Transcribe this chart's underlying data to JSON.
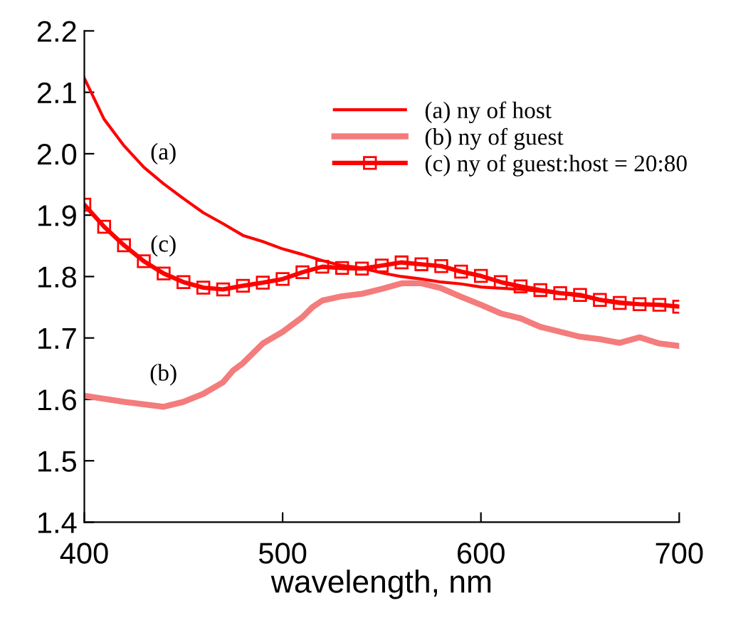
{
  "chart_data": {
    "type": "line",
    "xlabel": "wavelength, nm",
    "xlim": [
      400,
      700
    ],
    "xticks": [
      400,
      500,
      600,
      700
    ],
    "ylim": [
      1.4,
      2.2
    ],
    "yticks": [
      {
        "value": 1.4,
        "label": "1.4"
      },
      {
        "value": 1.5,
        "label": "1.5"
      },
      {
        "value": 1.6,
        "label": "1.6"
      },
      {
        "value": 1.7,
        "label": "1.7"
      },
      {
        "value": 1.8,
        "label": "1.8"
      },
      {
        "value": 1.9,
        "label": "1.9"
      },
      {
        "value": 2.0,
        "label": "2.0"
      },
      {
        "value": 2.1,
        "label": "2.1"
      },
      {
        "value": 2.2,
        "label": "2.2"
      }
    ],
    "grid": false,
    "legend": "top right",
    "annotations": [
      "(a)",
      "(c)",
      "(b)"
    ],
    "series": [
      {
        "name": "(a) ny of host",
        "color": "#ff0000",
        "marker": "none",
        "x": [
          400,
          410,
          420,
          430,
          440,
          450,
          460,
          470,
          480,
          490,
          500,
          510,
          520,
          530,
          540,
          550,
          560,
          570,
          580,
          590,
          600,
          620,
          640,
          660,
          680,
          700
        ],
        "values": [
          2.123,
          2.056,
          2.013,
          1.978,
          1.951,
          1.927,
          1.904,
          1.886,
          1.867,
          1.857,
          1.845,
          1.836,
          1.826,
          1.818,
          1.814,
          1.806,
          1.8,
          1.796,
          1.791,
          1.788,
          1.783,
          1.779,
          1.773,
          1.763,
          1.755,
          1.752
        ]
      },
      {
        "name": "(b) ny of guest",
        "color": "#f47c7c",
        "marker": "none",
        "x": [
          400,
          420,
          440,
          450,
          460,
          470,
          475,
          480,
          490,
          500,
          510,
          515,
          520,
          530,
          540,
          550,
          560,
          570,
          580,
          590,
          600,
          610,
          620,
          630,
          640,
          650,
          660,
          670,
          680,
          690,
          700
        ],
        "values": [
          1.606,
          1.596,
          1.588,
          1.596,
          1.609,
          1.628,
          1.647,
          1.659,
          1.691,
          1.71,
          1.734,
          1.75,
          1.761,
          1.768,
          1.772,
          1.78,
          1.789,
          1.789,
          1.781,
          1.767,
          1.754,
          1.74,
          1.732,
          1.718,
          1.71,
          1.702,
          1.698,
          1.692,
          1.701,
          1.691,
          1.687
        ]
      },
      {
        "name": "(c) ny of guest:host = 20:80",
        "color": "#ff0000",
        "marker": "square",
        "x": [
          400,
          410,
          420,
          430,
          440,
          450,
          460,
          470,
          480,
          490,
          500,
          510,
          520,
          530,
          540,
          550,
          560,
          570,
          580,
          590,
          600,
          610,
          620,
          630,
          640,
          650,
          660,
          670,
          680,
          690,
          700
        ],
        "values": [
          1.917,
          1.881,
          1.851,
          1.825,
          1.805,
          1.791,
          1.782,
          1.779,
          1.785,
          1.79,
          1.796,
          1.807,
          1.816,
          1.814,
          1.813,
          1.818,
          1.823,
          1.82,
          1.817,
          1.808,
          1.801,
          1.791,
          1.784,
          1.778,
          1.773,
          1.77,
          1.762,
          1.757,
          1.755,
          1.754,
          1.751
        ]
      }
    ]
  }
}
